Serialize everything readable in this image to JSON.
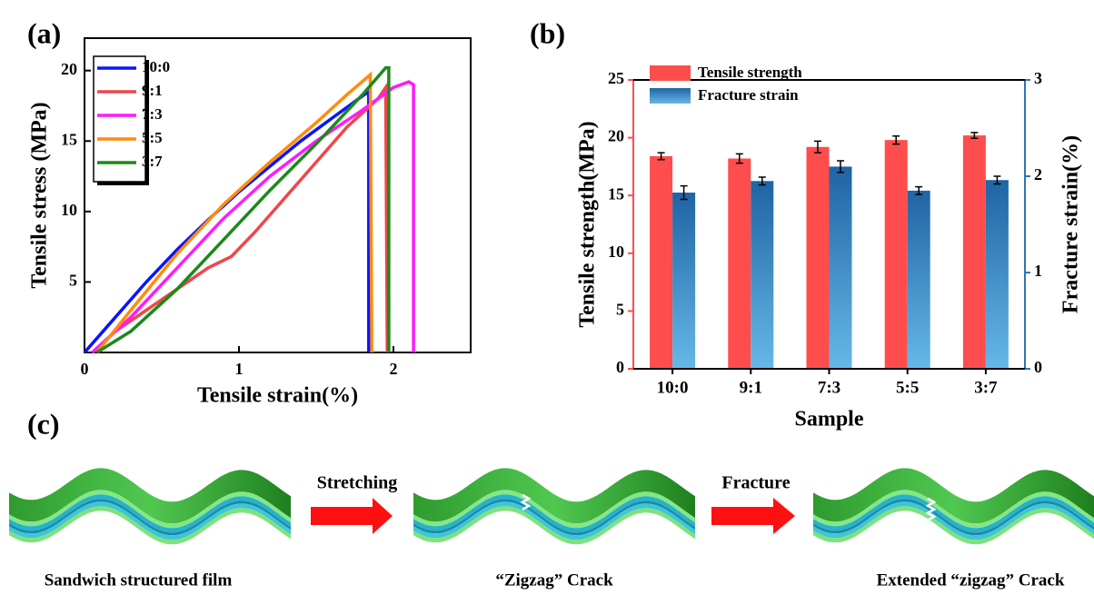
{
  "chart_data": [
    {
      "type": "line",
      "title": "(a)",
      "x_label": "Tensile strain(%)",
      "y_label": "Tensile stress (MPa)",
      "xlim": [
        0,
        2.5
      ],
      "ylim": [
        0,
        22.3
      ],
      "xticks": [
        0,
        1,
        2
      ],
      "yticks": [
        5,
        10,
        15,
        20
      ],
      "legend": "upper left",
      "series": [
        {
          "name": "10:0",
          "color": "#0a14ff",
          "x": [
            0,
            0.2,
            0.4,
            0.6,
            0.8,
            1.0,
            1.2,
            1.4,
            1.6,
            1.8,
            1.84,
            1.84
          ],
          "values": [
            0,
            2.5,
            5,
            7.3,
            9.4,
            11.4,
            13.2,
            15,
            16.6,
            18.2,
            18.5,
            0
          ]
        },
        {
          "name": "9:1",
          "color": "#f0464a",
          "x": [
            0.05,
            0.2,
            0.4,
            0.6,
            0.8,
            0.95,
            1.1,
            1.3,
            1.5,
            1.7,
            1.9,
            1.95,
            1.96
          ],
          "values": [
            0,
            1.5,
            3,
            4.5,
            6,
            6.8,
            8.5,
            11,
            13.5,
            16,
            18,
            18.8,
            0
          ]
        },
        {
          "name": "7:3",
          "color": "#ff1aff",
          "x": [
            0.05,
            0.3,
            0.6,
            0.9,
            1.2,
            1.5,
            1.8,
            2.0,
            2.1,
            2.13,
            2.13
          ],
          "values": [
            0,
            2.5,
            6,
            9.5,
            12.5,
            15,
            17.2,
            18.8,
            19.2,
            19,
            0
          ]
        },
        {
          "name": "5:5",
          "color": "#ff8c0a",
          "x": [
            0.08,
            0.3,
            0.6,
            0.9,
            1.2,
            1.5,
            1.7,
            1.85,
            1.86
          ],
          "values": [
            0,
            3,
            7,
            10.5,
            13.5,
            16.3,
            18.3,
            19.7,
            0
          ]
        },
        {
          "name": "3:7",
          "color": "#1a8a1a",
          "x": [
            0.08,
            0.3,
            0.6,
            0.9,
            1.2,
            1.5,
            1.8,
            1.95,
            1.97,
            1.97
          ],
          "values": [
            0,
            1.5,
            4.5,
            8,
            11.5,
            14.8,
            18.3,
            20.2,
            20.2,
            0
          ]
        }
      ]
    },
    {
      "type": "bar",
      "title": "(b)",
      "x_label": "Sample",
      "y_label": "Tensile strength(MPa)",
      "y2_label": "Fracture strain(%)",
      "categories": [
        "10:0",
        "9:1",
        "7:3",
        "5:5",
        "3:7"
      ],
      "ylim": [
        0,
        25
      ],
      "yticks": [
        0,
        5,
        10,
        15,
        20,
        25
      ],
      "y2lim": [
        0,
        3
      ],
      "y2ticks": [
        0,
        1,
        2,
        3
      ],
      "legend": "upper left",
      "series": [
        {
          "name": "Tensile strength",
          "color": "#ff4d4d",
          "values": [
            18.4,
            18.2,
            19.2,
            19.8,
            20.2
          ],
          "errors": [
            0.3,
            0.4,
            0.5,
            0.35,
            0.25
          ]
        },
        {
          "name": "Fracture strain",
          "color": "#2e75b6",
          "axis": "y2",
          "values": [
            1.83,
            1.95,
            2.1,
            1.85,
            1.96
          ],
          "errors": [
            0.07,
            0.04,
            0.06,
            0.04,
            0.04
          ]
        }
      ]
    }
  ],
  "diagram": {
    "label": "(c)",
    "arrows": [
      "Stretching",
      "Fracture"
    ],
    "steps": [
      "Sandwich structured film",
      "“Zigzag” Crack",
      "Extended “zigzag” Crack"
    ]
  }
}
